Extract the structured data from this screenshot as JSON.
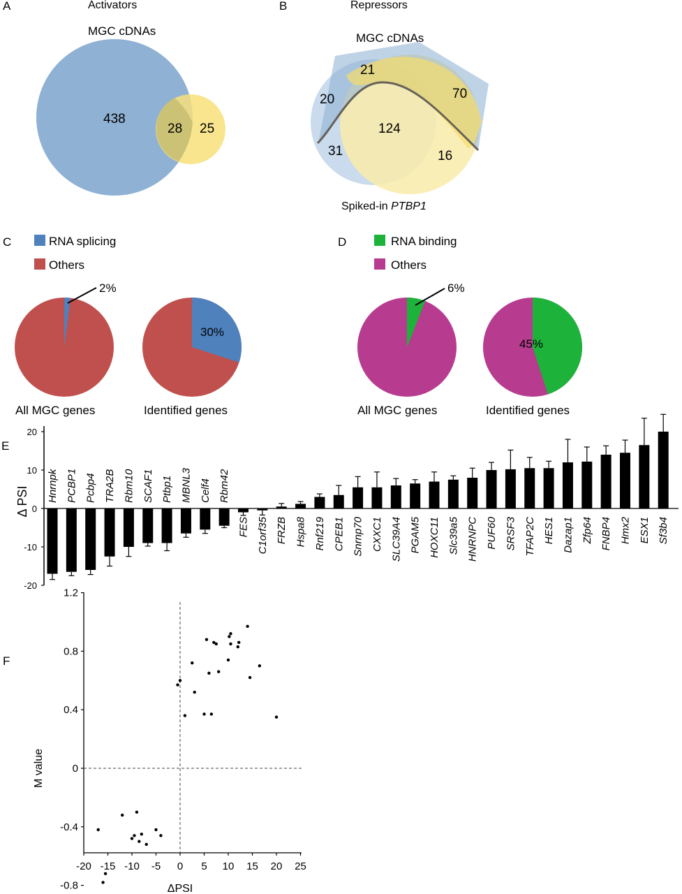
{
  "panels": {
    "A": {
      "letter": "A",
      "title": "Activators",
      "circle_label": "MGC cDNAs",
      "counts": {
        "only_mgc": "438",
        "overlap": "28",
        "only_other": "25"
      },
      "colors": {
        "mgc": "#8fb1d4",
        "other": "#f7e07a",
        "overlap": "#c8bf74"
      }
    },
    "B": {
      "letter": "B",
      "title": "Repressors",
      "top_label": "MGC cDNAs",
      "bottom_label_prefix": "Spiked-in ",
      "bottom_label_gene": "PTBP1",
      "counts": {
        "left_top": "20",
        "top_center": "21",
        "right_top": "70",
        "center": "124",
        "left_bottom": "31",
        "right_bottom": "16"
      }
    },
    "C": {
      "letter": "C",
      "legend": [
        {
          "label": "RNA splicing",
          "color": "#4f81bd"
        },
        {
          "label": "Others",
          "color": "#c0504d"
        }
      ],
      "pies": [
        {
          "label": "All MGC genes",
          "highlight_fraction": 0.02,
          "callout": "2%"
        },
        {
          "label": "Identified genes",
          "highlight_fraction": 0.3,
          "callout": "30%"
        }
      ]
    },
    "D": {
      "letter": "D",
      "legend": [
        {
          "label": "RNA binding",
          "color": "#1db33a"
        },
        {
          "label": "Others",
          "color": "#b73b8f"
        }
      ],
      "pies": [
        {
          "label": "All MGC genes",
          "highlight_fraction": 0.06,
          "callout": "6%"
        },
        {
          "label": "Identified genes",
          "highlight_fraction": 0.45,
          "callout": "45%"
        }
      ]
    },
    "E": {
      "letter": "E"
    },
    "F": {
      "letter": "F"
    }
  },
  "chart_data": [
    {
      "panel": "E",
      "type": "bar",
      "ylabel": "Δ PSI",
      "ylim": [
        -20,
        20
      ],
      "yticks": [
        "20",
        "10",
        "0",
        "-10",
        "-20"
      ],
      "categories": [
        "Hnrnpk",
        "PCBP1",
        "Pcbp4",
        "TRA2B",
        "Rbm10",
        "SCAF1",
        "Ptbp1",
        "MBNL3",
        "Celf4",
        "Rbm42",
        "FES",
        "C1orf35",
        "FRZB",
        "Hspa8",
        "Rnf219",
        "CPEB1",
        "Snrnp70",
        "CXXC1",
        "SLC39A4",
        "PGAM5",
        "HOXC11",
        "Slc39a5",
        "HNRNPC",
        "PUF60",
        "SRSF3",
        "TFAP2C",
        "HES1",
        "Dazap1",
        "Zfp64",
        "FNBP4",
        "Hmx2",
        "ESX1",
        "Sf3b4"
      ],
      "values": [
        -17,
        -16.5,
        -16,
        -12.5,
        -10,
        -9,
        -9,
        -6.5,
        -5.5,
        -4.5,
        -1,
        -0.5,
        0.5,
        1.2,
        3,
        3.5,
        5.5,
        5.5,
        6,
        6.5,
        7,
        7.5,
        8,
        10,
        10.2,
        10.5,
        10.5,
        12,
        12.2,
        14,
        14.5,
        16.5,
        20
      ],
      "errors": [
        1.5,
        1,
        1.2,
        2.5,
        2.5,
        0.8,
        2,
        1,
        1,
        0.5,
        0.8,
        1.2,
        0.8,
        0.6,
        0.8,
        2.5,
        2.8,
        4,
        1.8,
        1,
        2.5,
        1,
        2.5,
        2,
        5,
        2.8,
        1.8,
        6,
        3.8,
        2.3,
        3.3,
        7,
        4.5
      ]
    },
    {
      "panel": "F",
      "type": "scatter",
      "xlabel": "ΔPSI",
      "ylabel": "M value",
      "xlim": [
        -20,
        25
      ],
      "ylim": [
        -1.0,
        1.2
      ],
      "xticks": [
        "-20",
        "-15",
        "-10",
        "-5",
        "0",
        "5",
        "10",
        "15",
        "20",
        "25"
      ],
      "yticks": [
        "1.2",
        "0.8",
        "0.4",
        "0",
        "-0.4",
        "-0.8"
      ],
      "x": [
        -17,
        -16,
        -15.5,
        -12,
        -10,
        -9,
        -8.5,
        -9.5,
        -8,
        -7,
        -5,
        -4,
        -0.5,
        0,
        1,
        2.5,
        3,
        5,
        5.5,
        6,
        6.5,
        7,
        7.5,
        8,
        10,
        10.2,
        10.5,
        10.5,
        12,
        12.2,
        14,
        14.5,
        16.5,
        20
      ],
      "y": [
        -0.42,
        -0.78,
        -0.72,
        -0.32,
        -0.48,
        -0.3,
        -0.5,
        -0.46,
        -0.45,
        -0.52,
        -0.42,
        -0.46,
        0.57,
        0.6,
        0.36,
        0.72,
        0.52,
        0.37,
        0.88,
        0.65,
        0.37,
        0.86,
        0.85,
        0.66,
        0.74,
        0.9,
        0.92,
        0.85,
        0.83,
        0.86,
        0.97,
        0.62,
        0.7,
        0.35
      ]
    }
  ]
}
